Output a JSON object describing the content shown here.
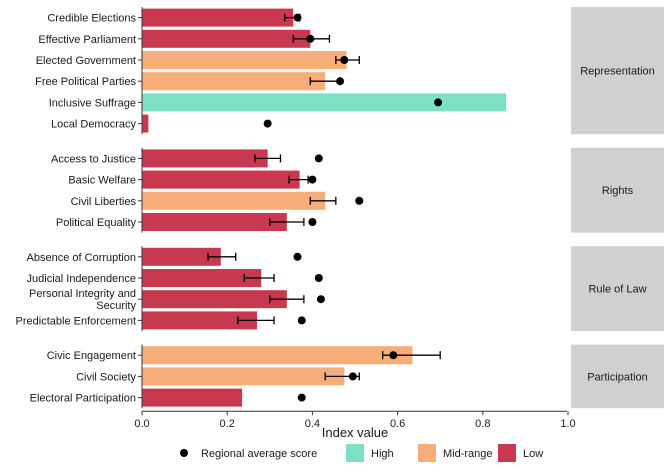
{
  "chart_data": {
    "type": "bar",
    "orientation": "horizontal",
    "xlabel": "Index value",
    "xlim": [
      0,
      1.0
    ],
    "xticks": [
      "0.0",
      "0.2",
      "0.4",
      "0.6",
      "0.8",
      "1.0"
    ],
    "grid": false,
    "legend_position": "bottom",
    "colors": {
      "High": "#7ddfc3",
      "Mid-range": "#f6ad78",
      "Low": "#c8394f",
      "average": "#000000",
      "panel_strip": "#d0d0d0"
    },
    "legend": {
      "average_label": "Regional average score",
      "categories": [
        "High",
        "Mid-range",
        "Low"
      ]
    },
    "panels": [
      {
        "name": "Representation",
        "items": [
          {
            "label": "Credible Elections",
            "value": 0.355,
            "level": "Low",
            "err": [
              0.335,
              0.37
            ],
            "avg": 0.365
          },
          {
            "label": "Effective Parliament",
            "value": 0.395,
            "level": "Low",
            "err": [
              0.355,
              0.44
            ],
            "avg": 0.395
          },
          {
            "label": "Elected Government",
            "value": 0.48,
            "level": "Mid-range",
            "err": [
              0.455,
              0.51
            ],
            "avg": 0.475
          },
          {
            "label": "Free Political Parties",
            "value": 0.43,
            "level": "Mid-range",
            "err": [
              0.395,
              0.465
            ],
            "avg": 0.465
          },
          {
            "label": "Inclusive Suffrage",
            "value": 0.855,
            "level": "High",
            "err": null,
            "avg": 0.695
          },
          {
            "label": "Local Democracy",
            "value": 0.015,
            "level": "Low",
            "err": null,
            "avg": 0.295
          }
        ]
      },
      {
        "name": "Rights",
        "items": [
          {
            "label": "Access to Justice",
            "value": 0.295,
            "level": "Low",
            "err": [
              0.265,
              0.325
            ],
            "avg": 0.415
          },
          {
            "label": "Basic Welfare",
            "value": 0.37,
            "level": "Low",
            "err": [
              0.345,
              0.39
            ],
            "avg": 0.4
          },
          {
            "label": "Civil Liberties",
            "value": 0.43,
            "level": "Mid-range",
            "err": [
              0.395,
              0.455
            ],
            "avg": 0.51
          },
          {
            "label": "Political Equality",
            "value": 0.34,
            "level": "Low",
            "err": [
              0.3,
              0.38
            ],
            "avg": 0.4
          }
        ]
      },
      {
        "name": "Rule of Law",
        "items": [
          {
            "label": "Absence of Corruption",
            "value": 0.185,
            "level": "Low",
            "err": [
              0.155,
              0.22
            ],
            "avg": 0.365
          },
          {
            "label": "Judicial Independence",
            "value": 0.28,
            "level": "Low",
            "err": [
              0.24,
              0.31
            ],
            "avg": 0.415
          },
          {
            "label": "Personal Integrity and Security",
            "value": 0.34,
            "level": "Low",
            "err": [
              0.3,
              0.38
            ],
            "avg": 0.42
          },
          {
            "label": "Predictable Enforcement",
            "value": 0.27,
            "level": "Low",
            "err": [
              0.225,
              0.31
            ],
            "avg": 0.375
          }
        ]
      },
      {
        "name": "Participation",
        "items": [
          {
            "label": "Civic Engagement",
            "value": 0.635,
            "level": "Mid-range",
            "err": [
              0.565,
              0.7
            ],
            "avg": 0.59
          },
          {
            "label": "Civil Society",
            "value": 0.475,
            "level": "Mid-range",
            "err": [
              0.43,
              0.51
            ],
            "avg": 0.495
          },
          {
            "label": "Electoral Participation",
            "value": 0.235,
            "level": "Low",
            "err": null,
            "avg": 0.375
          }
        ]
      }
    ]
  }
}
